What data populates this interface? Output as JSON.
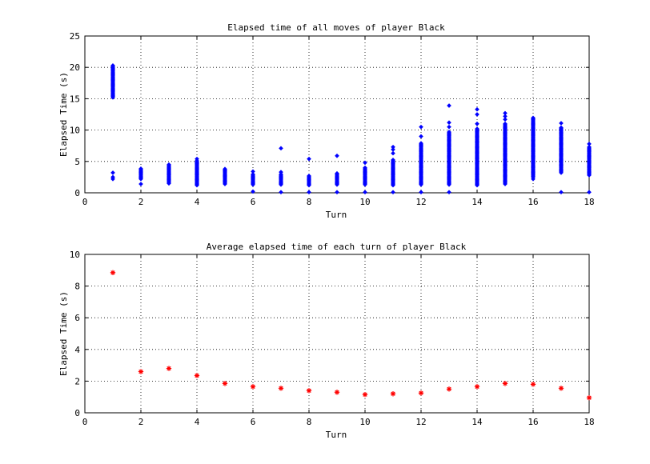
{
  "chart_data": [
    {
      "type": "scatter",
      "title": "Elapsed time of all moves of player Black",
      "xlabel": "Turn",
      "ylabel": "Elapsed Time (s)",
      "xlim": [
        0,
        18
      ],
      "ylim": [
        0,
        25
      ],
      "xticks": [
        0,
        2,
        4,
        6,
        8,
        10,
        12,
        14,
        16,
        18
      ],
      "yticks": [
        0,
        5,
        10,
        15,
        20,
        25
      ],
      "grid": true,
      "marker": "diamond",
      "color": "#0000ff",
      "columns": [
        {
          "x": 1,
          "min": 15.2,
          "max": 20.3,
          "outliers": [
            2.2,
            2.5,
            3.2
          ]
        },
        {
          "x": 2,
          "min": 2.2,
          "max": 3.9,
          "outliers": [
            1.4
          ]
        },
        {
          "x": 3,
          "min": 1.5,
          "max": 4.6,
          "outliers": []
        },
        {
          "x": 4,
          "min": 1.2,
          "max": 5.1,
          "outliers": [
            5.4
          ]
        },
        {
          "x": 5,
          "min": 1.4,
          "max": 3.9,
          "outliers": []
        },
        {
          "x": 6,
          "min": 1.3,
          "max": 3.0,
          "outliers": [
            3.4,
            0.2
          ]
        },
        {
          "x": 7,
          "min": 1.3,
          "max": 3.0,
          "outliers": [
            3.3,
            7.1,
            0.1
          ]
        },
        {
          "x": 8,
          "min": 1.2,
          "max": 2.7,
          "outliers": [
            5.4,
            0.1
          ]
        },
        {
          "x": 9,
          "min": 1.3,
          "max": 3.1,
          "outliers": [
            5.9,
            0.1
          ]
        },
        {
          "x": 10,
          "min": 1.3,
          "max": 4.1,
          "outliers": [
            4.8,
            0.1
          ]
        },
        {
          "x": 11,
          "min": 1.2,
          "max": 5.3,
          "outliers": [
            6.3,
            6.9,
            7.3,
            0.1
          ]
        },
        {
          "x": 12,
          "min": 1.3,
          "max": 8.0,
          "outliers": [
            9.0,
            10.5,
            0.1
          ]
        },
        {
          "x": 13,
          "min": 1.3,
          "max": 9.8,
          "outliers": [
            10.5,
            11.2,
            13.9,
            0.1
          ]
        },
        {
          "x": 14,
          "min": 1.2,
          "max": 10.3,
          "outliers": [
            11.0,
            12.5,
            13.3
          ]
        },
        {
          "x": 15,
          "min": 1.4,
          "max": 11.0,
          "outliers": [
            11.7,
            12.2,
            12.7
          ]
        },
        {
          "x": 16,
          "min": 2.5,
          "max": 12.0,
          "outliers": [
            2.2
          ]
        },
        {
          "x": 17,
          "min": 3.2,
          "max": 10.5,
          "outliers": [
            11.1,
            0.1
          ]
        },
        {
          "x": 18,
          "min": 2.8,
          "max": 7.3,
          "outliers": [
            7.8,
            0.1
          ]
        }
      ]
    },
    {
      "type": "scatter",
      "title": "Average elapsed time of each turn of player Black",
      "xlabel": "Turn",
      "ylabel": "Elapsed Time (s)",
      "xlim": [
        0,
        18
      ],
      "ylim": [
        0,
        10
      ],
      "xticks": [
        0,
        2,
        4,
        6,
        8,
        10,
        12,
        14,
        16,
        18
      ],
      "yticks": [
        0,
        2,
        4,
        6,
        8,
        10
      ],
      "grid": true,
      "marker": "asterisk",
      "color": "#ff0000",
      "x": [
        1,
        2,
        3,
        4,
        5,
        6,
        7,
        8,
        9,
        10,
        11,
        12,
        13,
        14,
        15,
        16,
        17,
        18
      ],
      "y": [
        8.85,
        2.6,
        2.8,
        2.35,
        1.85,
        1.65,
        1.55,
        1.4,
        1.3,
        1.15,
        1.2,
        1.25,
        1.5,
        1.65,
        1.85,
        1.8,
        1.55,
        0.95
      ]
    }
  ]
}
